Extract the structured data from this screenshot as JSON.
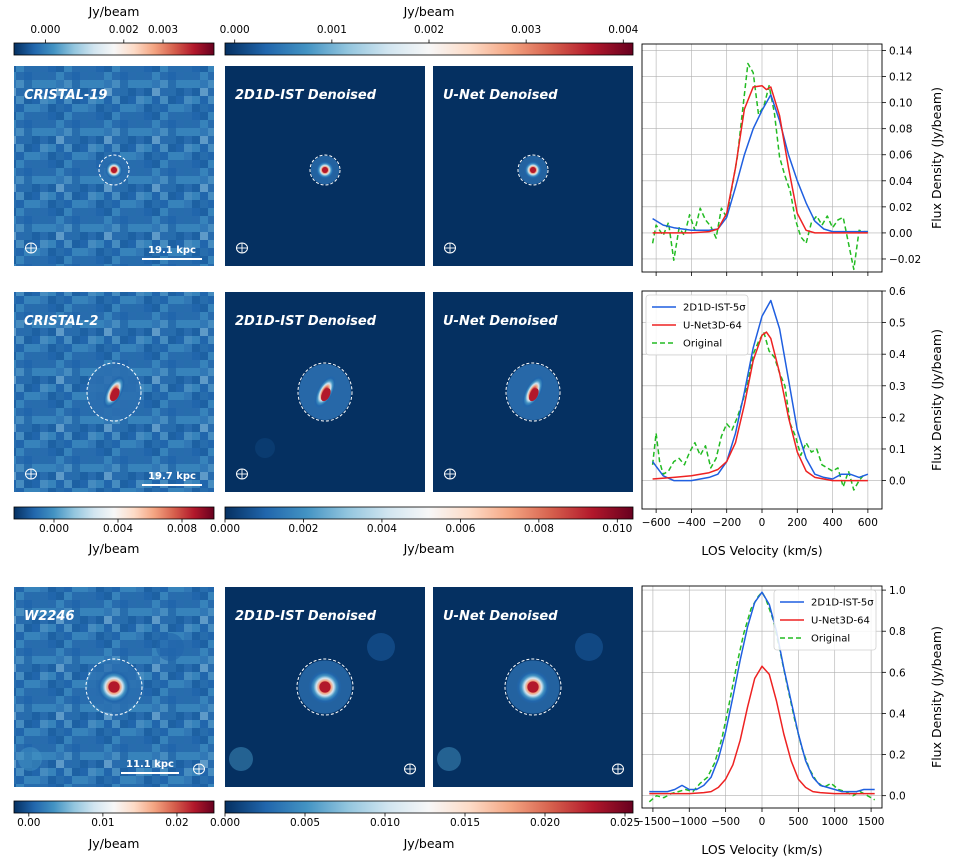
{
  "colors": {
    "cmap": [
      "#053061",
      "#2166ac",
      "#4393c3",
      "#92c5de",
      "#d1e5f0",
      "#f7f7f7",
      "#fddbc7",
      "#f4a582",
      "#d6604d",
      "#b2182b",
      "#67001f"
    ],
    "blue_line": "#1f5fe0",
    "red_line": "#ee2222",
    "green_line": "#22bb22",
    "contour": "#ffffff"
  },
  "colorbars": [
    {
      "label": "Jy/beam",
      "min": -0.0008,
      "max": 0.0043,
      "ticks": [
        "0.000",
        "0.002",
        "0.003"
      ],
      "tick_values": [
        0.0,
        0.002,
        0.003
      ]
    },
    {
      "label": "Jy/beam",
      "min": -0.0001,
      "max": 0.0041,
      "ticks": [
        "0.000",
        "0.001",
        "0.002",
        "0.003",
        "0.004"
      ],
      "tick_values": [
        0.0,
        0.001,
        0.002,
        0.003,
        0.004
      ]
    },
    {
      "label": "Jy/beam",
      "min": -0.0025,
      "max": 0.01,
      "ticks": [
        "0.000",
        "0.004",
        "0.008"
      ],
      "tick_values": [
        0.0,
        0.004,
        0.008
      ]
    },
    {
      "label": "Jy/beam",
      "min": 0.0,
      "max": 0.0104,
      "ticks": [
        "0.000",
        "0.002",
        "0.004",
        "0.006",
        "0.008",
        "0.010"
      ],
      "tick_values": [
        0.0,
        0.002,
        0.004,
        0.006,
        0.008,
        0.01
      ]
    },
    {
      "label": "Jy/beam",
      "min": -0.002,
      "max": 0.025,
      "ticks": [
        "0.00",
        "0.01",
        "0.02"
      ],
      "tick_values": [
        0.0,
        0.01,
        0.02
      ]
    },
    {
      "label": "Jy/beam",
      "min": 0.0,
      "max": 0.0255,
      "ticks": [
        "0.000",
        "0.005",
        "0.010",
        "0.015",
        "0.020",
        "0.025"
      ],
      "tick_values": [
        0.0,
        0.005,
        0.01,
        0.015,
        0.02,
        0.025
      ]
    }
  ],
  "rows": [
    {
      "titles": [
        "CRISTAL-19",
        "2D1D-IST Denoised",
        "U-Net Denoised"
      ],
      "scale_bar": "19.1 kpc",
      "source": "single"
    },
    {
      "titles": [
        "CRISTAL-2",
        "2D1D-IST Denoised",
        "U-Net Denoised"
      ],
      "scale_bar": "19.7 kpc",
      "source": "elongated"
    },
    {
      "titles": [
        "W2246",
        "2D1D-IST Denoised",
        "U-Net Denoised"
      ],
      "scale_bar": "11.1 kpc",
      "source": "single"
    }
  ],
  "chart_data": [
    {
      "type": "line",
      "title": "",
      "xlabel": "",
      "ylabel": "Flux Density (Jy/beam)",
      "xlim": [
        -680,
        680
      ],
      "ylim": [
        -0.03,
        0.145
      ],
      "yticks": [
        -0.02,
        0.0,
        0.02,
        0.04,
        0.06,
        0.08,
        0.1,
        0.12,
        0.14
      ],
      "ytick_labels": [
        "−0.02",
        "0.00",
        "0.02",
        "0.04",
        "0.06",
        "0.08",
        "0.10",
        "0.12",
        "0.14"
      ],
      "xticks": [
        -600,
        -400,
        -200,
        0,
        200,
        400,
        600
      ],
      "xtick_labels": [],
      "grid": true,
      "legend": null,
      "series": [
        {
          "name": "2D1D-IST-5σ",
          "style": "solid",
          "color": "blue",
          "x": [
            -620,
            -560,
            -500,
            -450,
            -400,
            -350,
            -300,
            -250,
            -200,
            -150,
            -100,
            -50,
            0,
            50,
            100,
            150,
            200,
            250,
            300,
            350,
            400,
            450,
            500,
            550,
            600
          ],
          "y": [
            0.011,
            0.006,
            0.004,
            0.003,
            0.002,
            0.002,
            0.002,
            0.003,
            0.012,
            0.035,
            0.06,
            0.08,
            0.094,
            0.106,
            0.086,
            0.06,
            0.04,
            0.023,
            0.009,
            0.003,
            0.001,
            0.001,
            0.001,
            0.001,
            0.001
          ]
        },
        {
          "name": "U-Net3D-64",
          "style": "solid",
          "color": "red",
          "x": [
            -620,
            -500,
            -400,
            -300,
            -250,
            -200,
            -150,
            -100,
            -50,
            0,
            25,
            50,
            100,
            150,
            200,
            250,
            300,
            400,
            500,
            600
          ],
          "y": [
            0.0,
            0.0,
            0.0,
            0.001,
            0.003,
            0.015,
            0.05,
            0.095,
            0.112,
            0.113,
            0.11,
            0.112,
            0.09,
            0.05,
            0.015,
            0.002,
            0.0,
            0.0,
            0.0,
            0.0
          ]
        },
        {
          "name": "Original",
          "style": "dashed",
          "color": "green",
          "x": [
            -620,
            -600,
            -560,
            -530,
            -500,
            -470,
            -440,
            -410,
            -380,
            -350,
            -320,
            -290,
            -260,
            -230,
            -200,
            -170,
            -140,
            -110,
            -80,
            -50,
            -20,
            10,
            40,
            70,
            100,
            130,
            160,
            190,
            220,
            250,
            280,
            310,
            340,
            370,
            400,
            430,
            460,
            490,
            520,
            550,
            580,
            600
          ],
          "y": [
            -0.008,
            0.006,
            -0.002,
            0.008,
            -0.021,
            0.004,
            -0.002,
            0.014,
            0.002,
            0.019,
            0.01,
            0.005,
            -0.004,
            0.019,
            0.012,
            0.035,
            0.058,
            0.094,
            0.13,
            0.123,
            0.091,
            0.097,
            0.113,
            0.092,
            0.058,
            0.044,
            0.032,
            0.01,
            -0.003,
            -0.008,
            0.008,
            0.013,
            0.006,
            0.013,
            0.004,
            0.01,
            0.012,
            -0.008,
            -0.028,
            0.002,
            0.001,
            0.001
          ]
        }
      ]
    },
    {
      "type": "line",
      "title": "",
      "xlabel": "LOS Velocity (km/s)",
      "ylabel": "Flux Density (Jy/beam)",
      "xlim": [
        -680,
        680
      ],
      "ylim": [
        -0.09,
        0.6
      ],
      "yticks": [
        0.0,
        0.1,
        0.2,
        0.3,
        0.4,
        0.5,
        0.6
      ],
      "ytick_labels": [
        "0.0",
        "0.1",
        "0.2",
        "0.3",
        "0.4",
        "0.5",
        "0.6"
      ],
      "xticks": [
        -600,
        -400,
        -200,
        0,
        200,
        400,
        600
      ],
      "xtick_labels": [
        "−600",
        "−400",
        "−200",
        "0",
        "200",
        "400",
        "600"
      ],
      "grid": true,
      "legend": "top-left",
      "series": [
        {
          "name": "2D1D-IST-5σ",
          "style": "solid",
          "color": "blue",
          "x": [
            -620,
            -560,
            -500,
            -450,
            -400,
            -350,
            -300,
            -250,
            -200,
            -150,
            -100,
            -50,
            0,
            50,
            100,
            150,
            200,
            250,
            300,
            350,
            400,
            450,
            500,
            550,
            600
          ],
          "y": [
            0.06,
            0.015,
            0.0,
            0.0,
            0.0,
            0.005,
            0.01,
            0.02,
            0.06,
            0.15,
            0.28,
            0.42,
            0.52,
            0.57,
            0.48,
            0.32,
            0.16,
            0.07,
            0.02,
            0.01,
            0.005,
            0.02,
            0.02,
            0.01,
            0.02
          ]
        },
        {
          "name": "U-Net3D-64",
          "style": "solid",
          "color": "red",
          "x": [
            -620,
            -500,
            -400,
            -350,
            -300,
            -250,
            -200,
            -150,
            -100,
            -50,
            0,
            25,
            50,
            100,
            150,
            200,
            250,
            300,
            400,
            500,
            600
          ],
          "y": [
            0.005,
            0.01,
            0.015,
            0.02,
            0.025,
            0.035,
            0.06,
            0.12,
            0.24,
            0.38,
            0.46,
            0.47,
            0.45,
            0.34,
            0.2,
            0.09,
            0.03,
            0.01,
            0.0,
            0.0,
            0.0
          ]
        },
        {
          "name": "Original",
          "style": "dashed",
          "color": "green",
          "x": [
            -620,
            -600,
            -580,
            -560,
            -530,
            -500,
            -470,
            -440,
            -410,
            -380,
            -350,
            -320,
            -290,
            -260,
            -230,
            -200,
            -170,
            -140,
            -110,
            -80,
            -50,
            -20,
            10,
            40,
            70,
            100,
            130,
            160,
            190,
            220,
            250,
            280,
            310,
            340,
            370,
            400,
            430,
            460,
            490,
            520,
            550,
            580
          ],
          "y": [
            0.05,
            0.15,
            0.06,
            0.02,
            0.03,
            0.06,
            0.07,
            0.05,
            0.09,
            0.12,
            0.08,
            0.11,
            0.04,
            0.07,
            0.14,
            0.18,
            0.16,
            0.2,
            0.25,
            0.31,
            0.4,
            0.44,
            0.47,
            0.41,
            0.39,
            0.34,
            0.3,
            0.18,
            0.14,
            0.08,
            0.12,
            0.09,
            0.1,
            0.05,
            0.04,
            0.03,
            0.04,
            -0.02,
            0.03,
            -0.03,
            0.0,
            0.02
          ]
        }
      ]
    },
    {
      "type": "line",
      "title": "",
      "xlabel": "LOS Velocity (km/s)",
      "ylabel": "Flux Density (Jy/beam)",
      "xlim": [
        -1650,
        1650
      ],
      "ylim": [
        -0.06,
        1.02
      ],
      "yticks": [
        0.0,
        0.2,
        0.4,
        0.6,
        0.8,
        1.0
      ],
      "ytick_labels": [
        "0.0",
        "0.2",
        "0.4",
        "0.6",
        "0.8",
        "1.0"
      ],
      "xticks": [
        -1500,
        -1000,
        -500,
        0,
        500,
        1000,
        1500
      ],
      "xtick_labels": [
        "−1500",
        "−1000",
        "−500",
        "0",
        "500",
        "1000",
        "1500"
      ],
      "grid": true,
      "legend": "top-right",
      "series": [
        {
          "name": "2D1D-IST-5σ",
          "style": "solid",
          "color": "blue",
          "x": [
            -1550,
            -1400,
            -1300,
            -1200,
            -1100,
            -1000,
            -900,
            -800,
            -700,
            -600,
            -500,
            -400,
            -300,
            -200,
            -100,
            0,
            100,
            200,
            300,
            400,
            500,
            600,
            700,
            800,
            900,
            1000,
            1100,
            1200,
            1300,
            1400,
            1550
          ],
          "y": [
            0.02,
            0.02,
            0.02,
            0.03,
            0.05,
            0.03,
            0.03,
            0.05,
            0.09,
            0.18,
            0.31,
            0.48,
            0.66,
            0.82,
            0.94,
            0.99,
            0.93,
            0.8,
            0.62,
            0.46,
            0.3,
            0.17,
            0.09,
            0.05,
            0.04,
            0.03,
            0.02,
            0.02,
            0.02,
            0.03,
            0.03
          ]
        },
        {
          "name": "U-Net3D-64",
          "style": "solid",
          "color": "red",
          "x": [
            -1550,
            -1200,
            -1000,
            -800,
            -700,
            -600,
            -500,
            -400,
            -300,
            -200,
            -100,
            0,
            100,
            200,
            300,
            400,
            500,
            600,
            700,
            800,
            1000,
            1200,
            1550
          ],
          "y": [
            0.01,
            0.01,
            0.01,
            0.015,
            0.02,
            0.04,
            0.08,
            0.15,
            0.27,
            0.43,
            0.57,
            0.63,
            0.59,
            0.46,
            0.3,
            0.17,
            0.08,
            0.04,
            0.02,
            0.015,
            0.01,
            0.01,
            0.01
          ]
        },
        {
          "name": "Original",
          "style": "dashed",
          "color": "green",
          "x": [
            -1550,
            -1450,
            -1350,
            -1250,
            -1150,
            -1050,
            -950,
            -850,
            -750,
            -650,
            -550,
            -450,
            -350,
            -250,
            -150,
            -50,
            0,
            50,
            150,
            250,
            350,
            450,
            550,
            650,
            750,
            850,
            950,
            1050,
            1150,
            1250,
            1350,
            1450,
            1550
          ],
          "y": [
            -0.03,
            0.0,
            -0.01,
            0.01,
            0.02,
            0.03,
            0.02,
            0.06,
            0.09,
            0.16,
            0.28,
            0.45,
            0.63,
            0.79,
            0.91,
            0.97,
            0.99,
            0.96,
            0.86,
            0.7,
            0.53,
            0.37,
            0.23,
            0.13,
            0.07,
            0.04,
            0.06,
            0.03,
            0.02,
            0.0,
            0.02,
            0.0,
            -0.02
          ]
        }
      ]
    }
  ]
}
